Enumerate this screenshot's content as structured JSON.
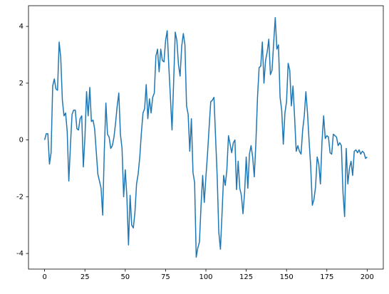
{
  "chart_data": {
    "type": "line",
    "color": "#1f77b4",
    "grid": false,
    "xlim": [
      -10,
      210
    ],
    "ylim": [
      -4.55,
      4.73
    ],
    "xticks": [
      0,
      25,
      50,
      75,
      100,
      125,
      150,
      175,
      200
    ],
    "yticks": [
      -4,
      -2,
      0,
      2,
      4
    ],
    "x": [
      0,
      1,
      2,
      3,
      4,
      5,
      6,
      7,
      8,
      9,
      10,
      11,
      12,
      13,
      14,
      15,
      16,
      17,
      18,
      19,
      20,
      21,
      22,
      23,
      24,
      25,
      26,
      27,
      28,
      29,
      30,
      31,
      32,
      33,
      34,
      35,
      36,
      37,
      38,
      39,
      40,
      41,
      42,
      43,
      44,
      45,
      46,
      47,
      48,
      49,
      50,
      51,
      52,
      53,
      54,
      55,
      56,
      57,
      58,
      59,
      60,
      61,
      62,
      63,
      64,
      65,
      66,
      67,
      68,
      69,
      70,
      71,
      72,
      73,
      74,
      75,
      76,
      77,
      78,
      79,
      80,
      81,
      82,
      83,
      84,
      85,
      86,
      87,
      88,
      89,
      90,
      91,
      92,
      93,
      94,
      95,
      96,
      97,
      98,
      99,
      100,
      101,
      102,
      103,
      104,
      105,
      106,
      107,
      108,
      109,
      110,
      111,
      112,
      113,
      114,
      115,
      116,
      117,
      118,
      119,
      120,
      121,
      122,
      123,
      124,
      125,
      126,
      127,
      128,
      129,
      130,
      131,
      132,
      133,
      134,
      135,
      136,
      137,
      138,
      139,
      140,
      141,
      142,
      143,
      144,
      145,
      146,
      147,
      148,
      149,
      150,
      151,
      152,
      153,
      154,
      155,
      156,
      157,
      158,
      159,
      160,
      161,
      162,
      163,
      164,
      165,
      166,
      167,
      168,
      169,
      170,
      171,
      172,
      173,
      174,
      175,
      176,
      177,
      178,
      179,
      180,
      181,
      182,
      183,
      184,
      185,
      186,
      187,
      188,
      189,
      190,
      191,
      192,
      193,
      194,
      195,
      196,
      197,
      198,
      199,
      200
    ],
    "values": [
      0.0,
      0.22,
      0.22,
      -0.85,
      -0.45,
      1.9,
      2.15,
      1.8,
      1.75,
      3.45,
      2.9,
      1.4,
      0.85,
      0.95,
      0.3,
      -1.45,
      -0.2,
      0.9,
      1.05,
      1.05,
      0.4,
      0.35,
      0.75,
      0.85,
      -0.95,
      0.1,
      1.7,
      0.85,
      1.85,
      0.65,
      0.7,
      0.4,
      -0.4,
      -1.2,
      -1.45,
      -1.7,
      -2.65,
      -0.4,
      1.3,
      0.2,
      0.1,
      -0.3,
      -0.2,
      0.1,
      0.6,
      1.2,
      1.65,
      0.2,
      -0.3,
      -2.0,
      -1.05,
      -2.0,
      -3.7,
      -1.95,
      -3.0,
      -3.1,
      -2.55,
      -1.55,
      -1.2,
      -0.6,
      0.25,
      0.95,
      1.1,
      1.95,
      0.75,
      1.45,
      0.95,
      1.5,
      1.65,
      2.95,
      3.2,
      2.4,
      3.2,
      2.8,
      2.75,
      3.5,
      3.85,
      2.6,
      1.5,
      0.35,
      2.05,
      3.8,
      3.5,
      2.65,
      2.25,
      3.3,
      3.75,
      3.35,
      1.2,
      0.9,
      -0.4,
      0.75,
      -1.15,
      -1.5,
      -4.13,
      -3.8,
      -3.6,
      -2.3,
      -1.25,
      -2.2,
      -1.3,
      -0.5,
      0.45,
      1.35,
      1.4,
      1.5,
      0.1,
      -1.3,
      -3.25,
      -3.85,
      -2.6,
      -1.25,
      -1.6,
      -1.05,
      0.15,
      -0.15,
      -0.45,
      -0.1,
      0.0,
      -1.75,
      -0.75,
      -1.7,
      -1.95,
      -2.6,
      -1.85,
      -0.6,
      -1.7,
      -0.5,
      -0.2,
      -0.6,
      -1.3,
      -0.1,
      1.5,
      2.55,
      2.6,
      3.45,
      2.0,
      2.8,
      3.1,
      3.55,
      2.3,
      2.45,
      3.4,
      4.31,
      3.2,
      3.35,
      1.5,
      1.05,
      -0.15,
      0.95,
      1.35,
      2.7,
      2.45,
      1.2,
      1.9,
      0.8,
      -0.4,
      -0.2,
      -0.4,
      -0.5,
      0.35,
      0.85,
      1.7,
      0.95,
      -0.05,
      -0.95,
      -2.3,
      -2.1,
      -1.65,
      -0.6,
      -0.85,
      -1.55,
      -0.05,
      0.85,
      0.05,
      0.15,
      0.1,
      -0.45,
      -0.5,
      0.2,
      0.15,
      0.1,
      -0.2,
      -0.1,
      -0.2,
      -1.85,
      -2.7,
      -0.3,
      -1.55,
      -1.0,
      -0.75,
      -1.25,
      -0.4,
      -0.35,
      -0.45,
      -0.35,
      -0.5,
      -0.4,
      -0.45,
      -0.65,
      -0.6
    ]
  }
}
